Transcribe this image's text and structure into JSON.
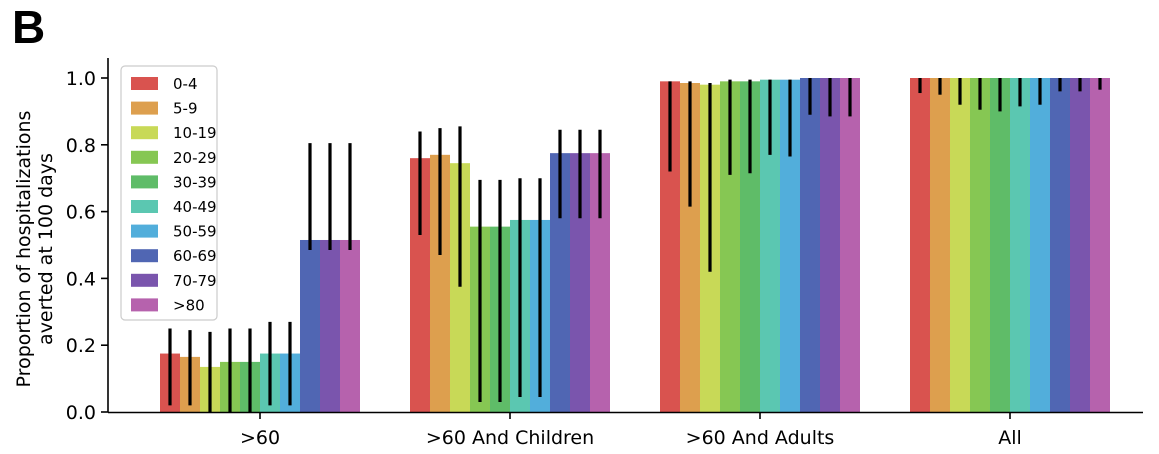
{
  "panel_label": "B",
  "chart_data": {
    "type": "bar",
    "categories": [
      ">60",
      ">60 And Children",
      ">60 And Adults",
      "All"
    ],
    "ylabel_lines": [
      "Proportion of hospitalizations",
      "averted at 100 days"
    ],
    "ylim": [
      0,
      1.0
    ],
    "yticks": [
      0.0,
      0.2,
      0.4,
      0.6,
      0.8,
      1.0
    ],
    "ytick_labels": [
      "0.0",
      "0.2",
      "0.4",
      "0.6",
      "0.8",
      "1.0"
    ],
    "grid": false,
    "legend_position": "top-left",
    "series": [
      {
        "name": "0-4",
        "color": "#d9534f",
        "values": [
          0.175,
          0.76,
          0.99,
          1.0
        ],
        "err_low": [
          0.02,
          0.53,
          0.72,
          0.955
        ],
        "err_high": [
          0.25,
          0.84,
          0.99,
          1.0
        ]
      },
      {
        "name": "5-9",
        "color": "#dd9f4e",
        "values": [
          0.165,
          0.77,
          0.985,
          1.0
        ],
        "err_low": [
          0.02,
          0.47,
          0.615,
          0.95
        ],
        "err_high": [
          0.245,
          0.85,
          0.99,
          1.0
        ]
      },
      {
        "name": "10-19",
        "color": "#c8d957",
        "values": [
          0.135,
          0.745,
          0.98,
          1.0
        ],
        "err_low": [
          0.0,
          0.375,
          0.42,
          0.92
        ],
        "err_high": [
          0.24,
          0.855,
          0.985,
          1.0
        ]
      },
      {
        "name": "20-29",
        "color": "#86c753",
        "values": [
          0.15,
          0.555,
          0.99,
          1.0
        ],
        "err_low": [
          0.0,
          0.03,
          0.71,
          0.905
        ],
        "err_high": [
          0.25,
          0.695,
          0.995,
          1.0
        ]
      },
      {
        "name": "30-39",
        "color": "#5fbc68",
        "values": [
          0.15,
          0.555,
          0.99,
          1.0
        ],
        "err_low": [
          0.0,
          0.03,
          0.715,
          0.9
        ],
        "err_high": [
          0.25,
          0.695,
          0.995,
          1.0
        ]
      },
      {
        "name": "40-49",
        "color": "#5bc7b1",
        "values": [
          0.175,
          0.575,
          0.995,
          1.0
        ],
        "err_low": [
          0.02,
          0.045,
          0.77,
          0.915
        ],
        "err_high": [
          0.27,
          0.7,
          0.995,
          1.0
        ]
      },
      {
        "name": "50-59",
        "color": "#52aedb",
        "values": [
          0.175,
          0.575,
          0.995,
          1.0
        ],
        "err_low": [
          0.02,
          0.045,
          0.765,
          0.92
        ],
        "err_high": [
          0.27,
          0.7,
          0.995,
          1.0
        ]
      },
      {
        "name": "60-69",
        "color": "#5066b3",
        "values": [
          0.515,
          0.775,
          1.0,
          1.0
        ],
        "err_low": [
          0.485,
          0.58,
          0.89,
          0.96
        ],
        "err_high": [
          0.805,
          0.845,
          1.0,
          1.0
        ]
      },
      {
        "name": "70-79",
        "color": "#7a55ad",
        "values": [
          0.515,
          0.775,
          1.0,
          1.0
        ],
        "err_low": [
          0.485,
          0.58,
          0.885,
          0.96
        ],
        "err_high": [
          0.805,
          0.845,
          1.0,
          1.0
        ]
      },
      {
        "name": ">80",
        "color": "#b662ad",
        "values": [
          0.515,
          0.775,
          1.0,
          1.0
        ],
        "err_low": [
          0.485,
          0.58,
          0.885,
          0.965
        ],
        "err_high": [
          0.805,
          0.845,
          1.0,
          1.0
        ]
      }
    ]
  }
}
